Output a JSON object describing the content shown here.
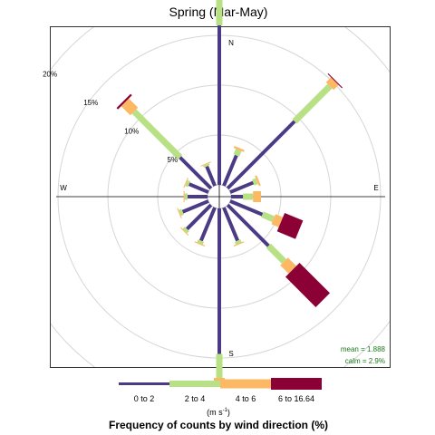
{
  "chart_data": {
    "type": "windrose",
    "title": "Spring (Mar-May)",
    "directions": [
      "N",
      "NNE",
      "NE",
      "ENE",
      "E",
      "ESE",
      "SE",
      "SSE",
      "S",
      "SSW",
      "SW",
      "WSW",
      "W",
      "WNW",
      "NW",
      "NNW"
    ],
    "cardinal_labels": {
      "N": "N",
      "E": "E",
      "S": "S",
      "W": "W"
    },
    "ring_levels": [
      5,
      10,
      15,
      20
    ],
    "ring_labels": [
      "5%",
      "10%",
      "15%",
      "20%"
    ],
    "grid": true,
    "series": [
      {
        "name": "0 to 2",
        "color": "#4a3b84",
        "values": [
          16.0,
          3.3,
          9.5,
          2.5,
          1.2,
          3.5,
          5.8,
          3.6,
          14.6,
          3.6,
          3.4,
          2.8,
          2.0,
          2.1,
          4.4,
          2.1
        ]
      },
      {
        "name": "2 to 4",
        "color": "#b8e186",
        "values": [
          4.0,
          0.6,
          5.0,
          0.4,
          1.0,
          1.2,
          2.2,
          0.3,
          2.4,
          0.3,
          0.3,
          0.3,
          0.3,
          0.3,
          6.5,
          0.2
        ]
      },
      {
        "name": "4 to 6",
        "color": "#fdb863",
        "values": [
          2.2,
          0.2,
          0.7,
          0.2,
          0.8,
          0.8,
          1.2,
          0.1,
          0.6,
          0.1,
          0.1,
          0.1,
          0.1,
          0.1,
          1.3,
          0.1
        ]
      },
      {
        "name": "6 to 16.64",
        "color": "#8b0035",
        "values": [
          0.3,
          0.0,
          0.1,
          0.0,
          0.0,
          2.0,
          4.3,
          0.0,
          0.3,
          0.0,
          0.0,
          0.0,
          0.0,
          0.0,
          0.2,
          0.0
        ]
      }
    ],
    "mean_label": "mean = 1.888",
    "calm_label": "calm = 2.9%",
    "legend": {
      "position": "bottom",
      "units": "(m s",
      "units_exponent": "-1",
      "units_close": ")",
      "title": "Frequency of counts by wind direction (%)"
    }
  }
}
